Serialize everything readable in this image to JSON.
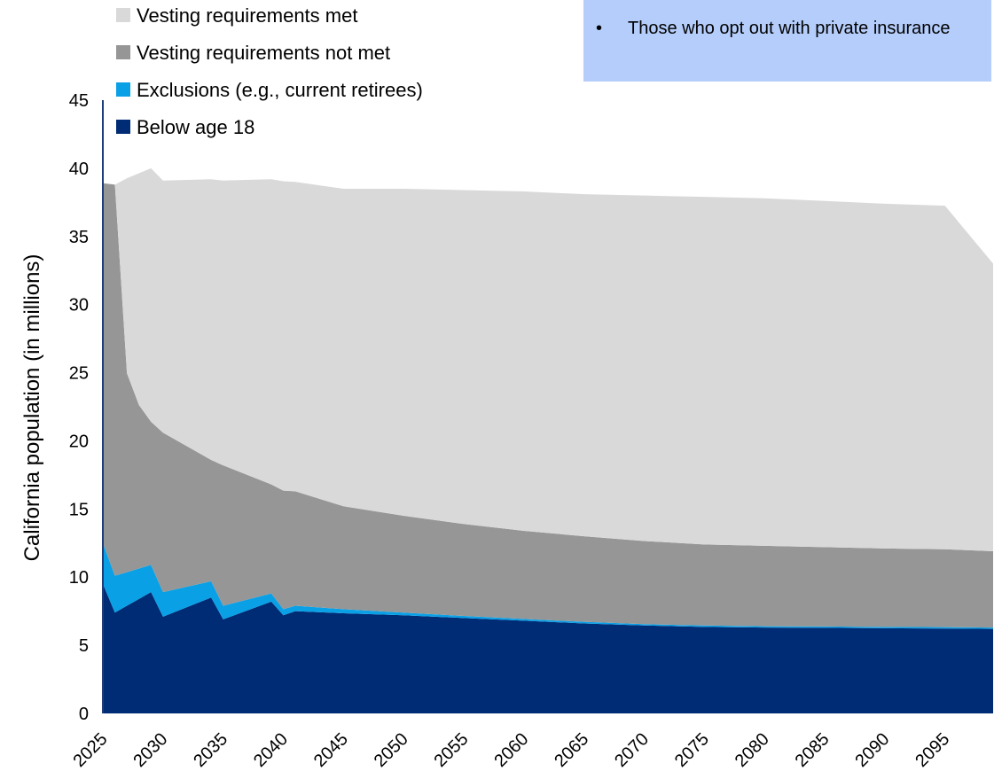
{
  "note": {
    "bullet": "•",
    "text": "Those who opt out with private insurance",
    "color": "#b4cdfa"
  },
  "chart_data": {
    "type": "area",
    "stacked": true,
    "ylabel": "California population (in millions)",
    "xlabel": "",
    "ylim": [
      0,
      45
    ],
    "yticks": [
      0,
      5,
      10,
      15,
      20,
      25,
      30,
      35,
      40,
      45
    ],
    "xlim": [
      2025,
      2099
    ],
    "xticks": [
      2025,
      2030,
      2035,
      2040,
      2045,
      2050,
      2055,
      2060,
      2065,
      2070,
      2075,
      2080,
      2085,
      2090,
      2095
    ],
    "legend_placement": "top-left",
    "grid": false,
    "series": [
      {
        "name": "Below age 18",
        "color": "#002b75",
        "points": [
          [
            2025,
            9.5
          ],
          [
            2026,
            7.4
          ],
          [
            2029,
            8.9
          ],
          [
            2030,
            7.1
          ],
          [
            2034,
            8.5
          ],
          [
            2035,
            6.9
          ],
          [
            2039,
            8.2
          ],
          [
            2040,
            7.2
          ],
          [
            2041,
            7.5
          ],
          [
            2045,
            7.35
          ],
          [
            2050,
            7.2
          ],
          [
            2055,
            7.0
          ],
          [
            2060,
            6.8
          ],
          [
            2065,
            6.6
          ],
          [
            2070,
            6.45
          ],
          [
            2075,
            6.35
          ],
          [
            2080,
            6.3
          ],
          [
            2085,
            6.28
          ],
          [
            2090,
            6.25
          ],
          [
            2095,
            6.23
          ],
          [
            2099,
            6.2
          ]
        ]
      },
      {
        "name": "Exclusions (e.g., current retirees)",
        "color": "#0aa0e6",
        "points": [
          [
            2025,
            3.0
          ],
          [
            2026,
            2.7
          ],
          [
            2029,
            2.0
          ],
          [
            2030,
            1.8
          ],
          [
            2034,
            1.2
          ],
          [
            2035,
            1.0
          ],
          [
            2039,
            0.6
          ],
          [
            2040,
            0.45
          ],
          [
            2041,
            0.4
          ],
          [
            2045,
            0.3
          ],
          [
            2050,
            0.2
          ],
          [
            2055,
            0.15
          ],
          [
            2060,
            0.13
          ],
          [
            2065,
            0.12
          ],
          [
            2070,
            0.1
          ],
          [
            2075,
            0.1
          ],
          [
            2080,
            0.1
          ],
          [
            2085,
            0.1
          ],
          [
            2090,
            0.1
          ],
          [
            2095,
            0.1
          ],
          [
            2099,
            0.1
          ]
        ]
      },
      {
        "name": "Vesting requirements not met",
        "color": "#969696",
        "points": [
          [
            2025,
            26.4
          ],
          [
            2026,
            28.7
          ],
          [
            2027,
            14.6
          ],
          [
            2028,
            12.0
          ],
          [
            2029,
            10.5
          ],
          [
            2030,
            11.7
          ],
          [
            2034,
            8.9
          ],
          [
            2035,
            10.3
          ],
          [
            2039,
            8.0
          ],
          [
            2040,
            8.7
          ],
          [
            2041,
            8.4
          ],
          [
            2045,
            7.55
          ],
          [
            2050,
            7.1
          ],
          [
            2055,
            6.75
          ],
          [
            2060,
            6.47
          ],
          [
            2065,
            6.28
          ],
          [
            2070,
            6.1
          ],
          [
            2075,
            5.95
          ],
          [
            2080,
            5.9
          ],
          [
            2085,
            5.82
          ],
          [
            2090,
            5.75
          ],
          [
            2095,
            5.72
          ],
          [
            2099,
            5.6
          ]
        ]
      },
      {
        "name": "Vesting requirements met",
        "color": "#d9d9d9",
        "points": [
          [
            2025,
            0.0
          ],
          [
            2026,
            0.0
          ],
          [
            2027,
            14.3
          ],
          [
            2028,
            17.0
          ],
          [
            2029,
            18.6
          ],
          [
            2030,
            18.5
          ],
          [
            2034,
            20.6
          ],
          [
            2035,
            20.9
          ],
          [
            2039,
            22.4
          ],
          [
            2040,
            22.7
          ],
          [
            2041,
            22.7
          ],
          [
            2045,
            23.3
          ],
          [
            2050,
            24.0
          ],
          [
            2055,
            24.5
          ],
          [
            2060,
            24.9
          ],
          [
            2065,
            25.1
          ],
          [
            2070,
            25.35
          ],
          [
            2075,
            25.5
          ],
          [
            2080,
            25.5
          ],
          [
            2085,
            25.4
          ],
          [
            2090,
            25.3
          ],
          [
            2095,
            25.2
          ],
          [
            2099,
            21.1
          ]
        ]
      }
    ]
  }
}
